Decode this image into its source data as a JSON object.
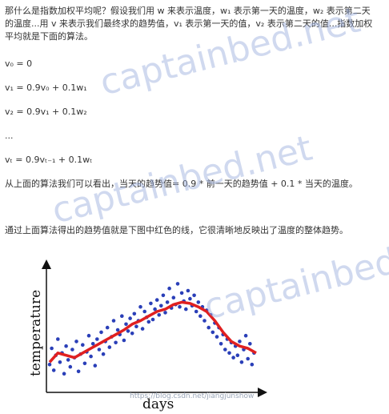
{
  "intro": {
    "line1": "那什么是指数加权平均呢？假设我们用 w 来表示温度，w₁ 表示第一天的温度，w₂ 表示第二天",
    "line2": "的温度...用 v 来表示我们最终求的趋势值，v₁ 表示第一天的值，v₂ 表示第二天的值...指数加权",
    "line3": "平均就是下面的算法。"
  },
  "formulas": {
    "f0": "v₀ = 0",
    "f1": "v₁ = 0.9v₀ + 0.1w₁",
    "f2": "v₂ = 0.9v₁ + 0.1w₂",
    "ellipsis": "...",
    "ft": "vₜ = 0.9vₜ₋₁ + 0.1wₜ"
  },
  "summary": "从上面的算法我们可以看出，当天的趋势值= 0.9 * 前一天的趋势值 + 0.1 * 当天的温度。",
  "caption": "通过上面算法得出的趋势值就是下图中红色的线，它很清晰地反映出了温度的整体趋势。",
  "watermarks": [
    "captainbed.net",
    "captainbed.net",
    "captainbed.net"
  ],
  "credit": "https://blog.csdn.net/jiangjunshow",
  "chart_data": {
    "type": "scatter",
    "xlabel": "days",
    "ylabel": "temperature",
    "colors": {
      "points": "#2a3fb8",
      "trend": "#e02020",
      "axis": "#111111"
    },
    "x": [
      0,
      4,
      8,
      12,
      16,
      20,
      24,
      28,
      32,
      36,
      40,
      44,
      48,
      52,
      56,
      60,
      64,
      68,
      72,
      76,
      80,
      84,
      88,
      92,
      96,
      100
    ],
    "trend": [
      22,
      30,
      28,
      26,
      30,
      34,
      38,
      42,
      46,
      50,
      55,
      58,
      62,
      66,
      68,
      72,
      74,
      73,
      70,
      66,
      58,
      48,
      40,
      36,
      34,
      30
    ],
    "points": [
      [
        0,
        20
      ],
      [
        1,
        34
      ],
      [
        2,
        15
      ],
      [
        3,
        28
      ],
      [
        4,
        42
      ],
      [
        5,
        22
      ],
      [
        6,
        30
      ],
      [
        7,
        12
      ],
      [
        8,
        36
      ],
      [
        9,
        24
      ],
      [
        10,
        18
      ],
      [
        11,
        33
      ],
      [
        12,
        26
      ],
      [
        13,
        40
      ],
      [
        14,
        14
      ],
      [
        15,
        29
      ],
      [
        16,
        37
      ],
      [
        17,
        21
      ],
      [
        18,
        31
      ],
      [
        19,
        45
      ],
      [
        20,
        27
      ],
      [
        21,
        38
      ],
      [
        22,
        19
      ],
      [
        23,
        42
      ],
      [
        24,
        33
      ],
      [
        25,
        48
      ],
      [
        26,
        29
      ],
      [
        27,
        40
      ],
      [
        28,
        52
      ],
      [
        29,
        35
      ],
      [
        30,
        44
      ],
      [
        31,
        58
      ],
      [
        32,
        39
      ],
      [
        33,
        50
      ],
      [
        34,
        46
      ],
      [
        35,
        62
      ],
      [
        36,
        41
      ],
      [
        37,
        55
      ],
      [
        38,
        49
      ],
      [
        39,
        60
      ],
      [
        40,
        47
      ],
      [
        41,
        64
      ],
      [
        42,
        53
      ],
      [
        43,
        58
      ],
      [
        44,
        70
      ],
      [
        45,
        51
      ],
      [
        46,
        66
      ],
      [
        47,
        61
      ],
      [
        48,
        57
      ],
      [
        49,
        73
      ],
      [
        50,
        59
      ],
      [
        51,
        68
      ],
      [
        52,
        76
      ],
      [
        53,
        63
      ],
      [
        54,
        71
      ],
      [
        55,
        80
      ],
      [
        56,
        65
      ],
      [
        57,
        74
      ],
      [
        58,
        86
      ],
      [
        59,
        69
      ],
      [
        60,
        78
      ],
      [
        61,
        72
      ],
      [
        62,
        90
      ],
      [
        63,
        70
      ],
      [
        64,
        82
      ],
      [
        65,
        75
      ],
      [
        66,
        68
      ],
      [
        67,
        84
      ],
      [
        68,
        77
      ],
      [
        69,
        71
      ],
      [
        70,
        80
      ],
      [
        71,
        66
      ],
      [
        72,
        74
      ],
      [
        73,
        62
      ],
      [
        74,
        70
      ],
      [
        75,
        58
      ],
      [
        76,
        67
      ],
      [
        77,
        52
      ],
      [
        78,
        63
      ],
      [
        79,
        48
      ],
      [
        80,
        56
      ],
      [
        81,
        44
      ],
      [
        82,
        52
      ],
      [
        83,
        38
      ],
      [
        84,
        46
      ],
      [
        85,
        33
      ],
      [
        86,
        42
      ],
      [
        87,
        30
      ],
      [
        88,
        39
      ],
      [
        89,
        26
      ],
      [
        90,
        36
      ],
      [
        91,
        28
      ],
      [
        92,
        40
      ],
      [
        93,
        22
      ],
      [
        94,
        33
      ],
      [
        95,
        45
      ],
      [
        96,
        25
      ],
      [
        97,
        38
      ],
      [
        98,
        20
      ],
      [
        99,
        30
      ]
    ],
    "xlim": [
      0,
      100
    ],
    "ylim": [
      0,
      100
    ]
  }
}
